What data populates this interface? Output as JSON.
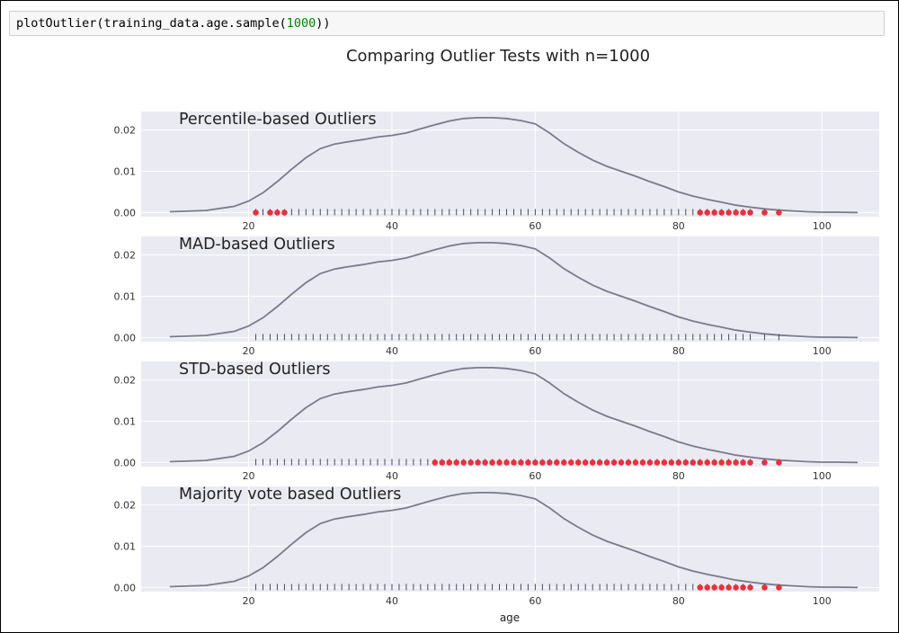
{
  "code_cell": {
    "prefix": "plotOutlier(training_data.age.sample(",
    "number": "1000",
    "suffix": "))"
  },
  "colors": {
    "panel_bg": "#eaeaf2",
    "kde_line": "#7a7a8c",
    "outlier": "#e8313b",
    "rug": "#4a4a60",
    "grid": "#ffffff"
  },
  "chart_data": {
    "type": "line",
    "title": "Comparing Outlier Tests with n=1000",
    "xlabel": "age",
    "xlim": [
      5,
      108
    ],
    "ylim": [
      -0.001,
      0.0245
    ],
    "x_ticks": [
      20,
      40,
      60,
      80,
      100
    ],
    "y_ticks": [
      0.0,
      0.01,
      0.02
    ],
    "y_tick_labels": [
      "0.00",
      "0.01",
      "0.02"
    ],
    "grid": true,
    "kde": {
      "x": [
        9,
        14,
        18,
        20,
        22,
        24,
        26,
        28,
        30,
        32,
        34,
        36,
        38,
        40,
        42,
        44,
        46,
        48,
        50,
        52,
        54,
        56,
        58,
        60,
        62,
        64,
        66,
        68,
        70,
        72,
        74,
        76,
        78,
        80,
        82,
        84,
        86,
        88,
        90,
        92,
        94,
        96,
        98,
        100,
        102,
        105
      ],
      "y": [
        0.0002,
        0.0005,
        0.0015,
        0.0028,
        0.0048,
        0.0075,
        0.0105,
        0.0133,
        0.0155,
        0.0166,
        0.0172,
        0.0177,
        0.0183,
        0.0187,
        0.0193,
        0.0203,
        0.0213,
        0.0222,
        0.0228,
        0.023,
        0.023,
        0.0228,
        0.0223,
        0.0215,
        0.0193,
        0.0167,
        0.0146,
        0.0127,
        0.0112,
        0.01,
        0.0088,
        0.0075,
        0.0063,
        0.005,
        0.004,
        0.0032,
        0.0025,
        0.0018,
        0.0013,
        0.0009,
        0.0006,
        0.0004,
        0.0002,
        0.0001,
        0.0001,
        0.0
      ]
    },
    "rug": [
      21,
      22,
      23,
      24,
      25,
      26,
      27,
      28,
      29,
      30,
      31,
      32,
      33,
      34,
      35,
      36,
      37,
      38,
      39,
      40,
      41,
      42,
      43,
      44,
      45,
      46,
      47,
      48,
      49,
      50,
      51,
      52,
      53,
      54,
      55,
      56,
      57,
      58,
      59,
      60,
      61,
      62,
      63,
      64,
      65,
      66,
      67,
      68,
      69,
      70,
      71,
      72,
      73,
      74,
      75,
      76,
      77,
      78,
      79,
      80,
      81,
      82,
      83,
      84,
      85,
      86,
      87,
      88,
      89,
      90,
      92,
      94
    ],
    "panels": [
      {
        "title": "Percentile-based Outliers",
        "outliers": [
          21,
          23,
          24,
          25,
          83,
          84,
          85,
          86,
          87,
          88,
          89,
          90,
          92,
          94
        ]
      },
      {
        "title": "MAD-based Outliers",
        "outliers": []
      },
      {
        "title": "STD-based Outliers",
        "outliers": [
          46,
          47,
          48,
          49,
          50,
          51,
          52,
          53,
          54,
          55,
          56,
          57,
          58,
          59,
          60,
          61,
          62,
          63,
          64,
          65,
          66,
          67,
          68,
          69,
          70,
          71,
          72,
          73,
          74,
          75,
          76,
          77,
          78,
          79,
          80,
          81,
          82,
          83,
          84,
          85,
          86,
          87,
          88,
          89,
          90,
          92,
          94
        ]
      },
      {
        "title": "Majority vote based Outliers",
        "outliers": [
          83,
          84,
          85,
          86,
          87,
          88,
          89,
          90,
          92,
          94
        ]
      }
    ]
  }
}
